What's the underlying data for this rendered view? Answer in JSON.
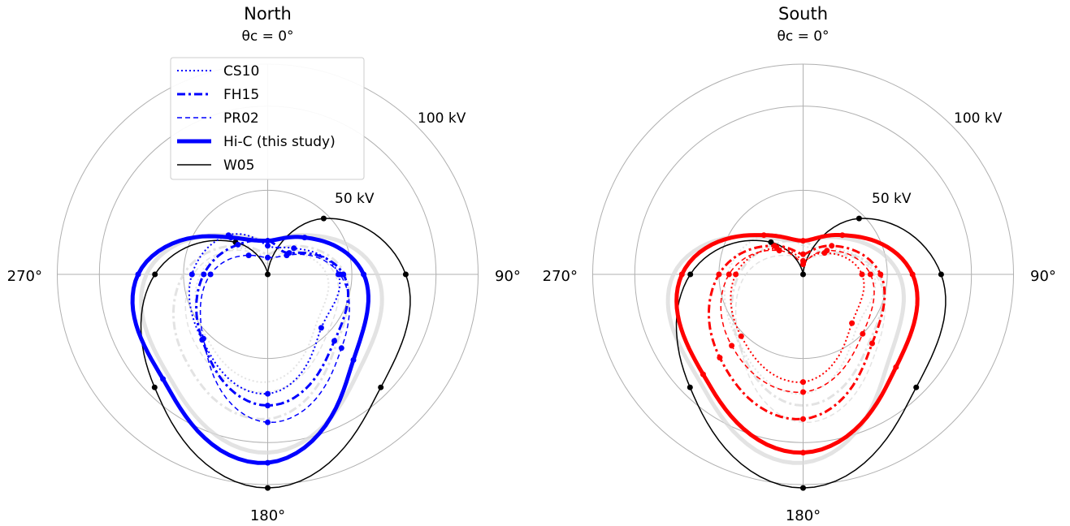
{
  "chart_data": [
    {
      "type": "polar-line",
      "title": "North",
      "subtitle": "θc = 0°",
      "theta_ticks": [
        "90°",
        "180°",
        "270°"
      ],
      "r_ticks": [
        "50 kV",
        "100 kV"
      ],
      "r_values": [
        50,
        100
      ],
      "rlim": [
        0,
        125
      ],
      "theta_zero": "top",
      "theta_direction": "clockwise",
      "legend_position": "upper-left",
      "series": [
        {
          "name": "CS10",
          "color": "#0000ff",
          "style": "dotted",
          "theta_deg": [
            0,
            45,
            90,
            135,
            180,
            225,
            270,
            315
          ],
          "values": [
            17,
            22,
            42,
            45,
            71,
            55,
            45,
            33
          ]
        },
        {
          "name": "FH15",
          "color": "#0000ff",
          "style": "dashdot",
          "theta_deg": [
            0,
            45,
            90,
            135,
            180,
            225,
            270,
            315
          ],
          "values": [
            20,
            18,
            45,
            56,
            78,
            55,
            38,
            25
          ]
        },
        {
          "name": "PR02",
          "color": "#0000ff",
          "style": "dashed",
          "theta_deg": [
            0,
            45,
            90,
            135,
            180,
            225,
            270,
            315
          ],
          "values": [
            10,
            16,
            43,
            62,
            88,
            54,
            34,
            16
          ]
        },
        {
          "name": "Hi-C (this study)",
          "color": "#0000ff",
          "style": "solid-thick",
          "theta_deg": [
            0,
            45,
            90,
            135,
            180,
            225,
            270,
            315
          ],
          "values": [
            20,
            31,
            57,
            72,
            112,
            88,
            77,
            31
          ]
        },
        {
          "name": "W05",
          "color": "#000000",
          "style": "solid",
          "theta_deg": [
            0,
            45,
            90,
            135,
            180,
            225,
            270,
            315
          ],
          "values": [
            0,
            47,
            82,
            95,
            127,
            95,
            67,
            27
          ]
        }
      ]
    },
    {
      "type": "polar-line",
      "title": "South",
      "subtitle": "θc = 0°",
      "theta_ticks": [
        "90°",
        "180°",
        "270°"
      ],
      "r_ticks": [
        "50 kV",
        "100 kV"
      ],
      "r_values": [
        50,
        100
      ],
      "rlim": [
        0,
        125
      ],
      "theta_zero": "top",
      "theta_direction": "clockwise",
      "series": [
        {
          "name": "CS10",
          "color": "#ff0000",
          "style": "dotted",
          "theta_deg": [
            0,
            45,
            90,
            135,
            180,
            225,
            270,
            315
          ],
          "values": [
            8,
            18,
            35,
            41,
            64,
            52,
            40,
            22
          ]
        },
        {
          "name": "FH15",
          "color": "#ff0000",
          "style": "dashdot",
          "theta_deg": [
            0,
            45,
            90,
            135,
            180,
            225,
            270,
            315
          ],
          "values": [
            12,
            24,
            46,
            58,
            86,
            70,
            50,
            24
          ]
        },
        {
          "name": "PR02",
          "color": "#ff0000",
          "style": "dashed",
          "theta_deg": [
            0,
            45,
            90,
            135,
            180,
            225,
            270,
            315
          ],
          "values": [
            6,
            20,
            40,
            50,
            70,
            60,
            44,
            20
          ]
        },
        {
          "name": "Hi-C (this study)",
          "color": "#ff0000",
          "style": "solid-thick",
          "theta_deg": [
            0,
            45,
            90,
            135,
            180,
            225,
            270,
            315
          ],
          "values": [
            20,
            33,
            65,
            78,
            106,
            84,
            72,
            33
          ]
        },
        {
          "name": "W05",
          "color": "#000000",
          "style": "solid",
          "theta_deg": [
            0,
            45,
            90,
            135,
            180,
            225,
            270,
            315
          ],
          "values": [
            0,
            47,
            82,
            95,
            127,
            95,
            67,
            27
          ]
        }
      ]
    }
  ]
}
